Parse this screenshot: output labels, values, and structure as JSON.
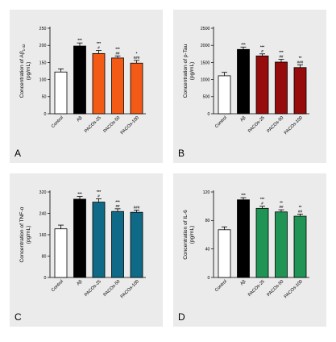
{
  "figure": {
    "background": "#ebebeb",
    "panels": [
      {
        "letter": "A",
        "ylabel_main": "Concentration of Aβ",
        "ylabel_sub": "1-42",
        "ylabel_unit": "(pg/mL)"
      },
      {
        "letter": "B",
        "ylabel_main": "Concentration of p-Tau",
        "ylabel_sub": "",
        "ylabel_unit": "(pg/mL)"
      },
      {
        "letter": "C",
        "ylabel_main": "Concentration of TNF-α",
        "ylabel_sub": "",
        "ylabel_unit": "(pg/mL)"
      },
      {
        "letter": "D",
        "ylabel_main": "Concentration of IL-6",
        "ylabel_sub": "",
        "ylabel_unit": "(pg/mL)"
      }
    ]
  },
  "chart_data": [
    {
      "type": "bar",
      "categories": [
        "Control",
        "Aβ",
        "PACOs-25",
        "PACOs-50",
        "PACOs-100"
      ],
      "values": [
        122,
        198,
        176,
        163,
        148
      ],
      "errors": [
        9,
        9,
        9,
        6,
        8
      ],
      "colors": [
        "#ffffff",
        "#000000",
        "#f35a16",
        "#f35a16",
        "#f35a16"
      ],
      "sig_top": [
        "",
        "***",
        "***",
        "***",
        "*"
      ],
      "sig_bottom": [
        "",
        "",
        "#",
        "##",
        "###"
      ],
      "ylim": [
        0,
        250
      ],
      "yticks": [
        0,
        50,
        100,
        150,
        200,
        250
      ]
    },
    {
      "type": "bar",
      "categories": [
        "Control",
        "Aβ",
        "PACOs-25",
        "PACOs-50",
        "PACOs-100"
      ],
      "values": [
        1110,
        1880,
        1690,
        1510,
        1350
      ],
      "errors": [
        100,
        70,
        60,
        80,
        80
      ],
      "colors": [
        "#ffffff",
        "#000000",
        "#960b0b",
        "#960b0b",
        "#960b0b"
      ],
      "sig_top": [
        "",
        "***",
        "***",
        "***",
        "**"
      ],
      "sig_bottom": [
        "",
        "",
        "#",
        "##",
        "###"
      ],
      "ylim": [
        0,
        2500
      ],
      "yticks": [
        0,
        500,
        1000,
        1500,
        2000,
        2500
      ]
    },
    {
      "type": "bar",
      "categories": [
        "Control",
        "Aβ",
        "PACOs-25",
        "PACOs-50",
        "PACOs-100"
      ],
      "values": [
        182,
        293,
        282,
        247,
        244
      ],
      "errors": [
        14,
        10,
        12,
        10,
        8
      ],
      "colors": [
        "#ffffff",
        "#000000",
        "#0f6a87",
        "#0f6a87",
        "#0f6a87"
      ],
      "sig_top": [
        "",
        "***",
        "***",
        "***",
        ""
      ],
      "sig_bottom": [
        "",
        "",
        "#",
        "##",
        "###"
      ],
      "ylim": [
        0,
        320
      ],
      "yticks": [
        0,
        80,
        160,
        240,
        320
      ]
    },
    {
      "type": "bar",
      "categories": [
        "Control",
        "Aβ",
        "PACOs-25",
        "PACOs-50",
        "PACOs-100"
      ],
      "values": [
        67,
        109,
        97,
        92,
        86
      ],
      "errors": [
        4,
        3,
        3,
        3,
        3
      ],
      "colors": [
        "#ffffff",
        "#000000",
        "#1f9455",
        "#1f9455",
        "#1f9455"
      ],
      "sig_top": [
        "",
        "***",
        "***",
        "**",
        "**"
      ],
      "sig_bottom": [
        "",
        "",
        "#",
        "##",
        "##"
      ],
      "ylim": [
        0,
        120
      ],
      "yticks": [
        0,
        40,
        80,
        120
      ]
    }
  ]
}
